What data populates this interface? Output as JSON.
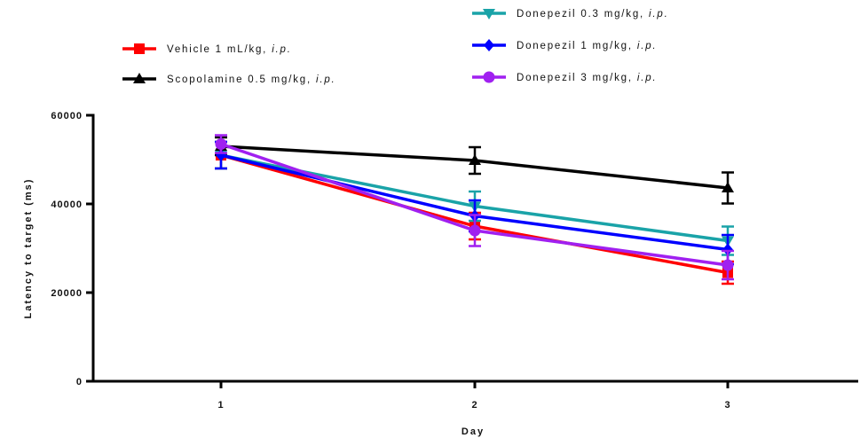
{
  "chart_data": {
    "type": "line",
    "title": "",
    "xlabel": "Day",
    "ylabel": "Latency to target (ms)",
    "x": [
      1,
      2,
      3
    ],
    "xticks": [
      "1",
      "2",
      "3"
    ],
    "yticks": [
      "0",
      "20000",
      "40000",
      "60000"
    ],
    "ylim": [
      0,
      60000
    ],
    "grid": false,
    "legend_placement": "top",
    "series": [
      {
        "name": "Vehicle 1 mL/kg, i.p.",
        "legend_text": "Vehicle 1 mL/kg, ",
        "legend_italic": "i.p.",
        "marker": "square",
        "color": "#ff0000",
        "values": [
          51000,
          35000,
          24500
        ],
        "errors": [
          3000,
          3000,
          2500
        ]
      },
      {
        "name": "Scopolamine 0.5 mg/kg, i.p.",
        "legend_text": "Scopolamine 0.5 mg/kg, ",
        "legend_italic": "i.p.",
        "marker": "triangle-up",
        "color": "#000000",
        "values": [
          53000,
          49800,
          43600
        ],
        "errors": [
          2000,
          3000,
          3500
        ]
      },
      {
        "name": "Donepezil 0.3 mg/kg, i.p.",
        "legend_text": "Donepezil 0.3 mg/kg, ",
        "legend_italic": "i.p.",
        "marker": "triangle-down",
        "color": "#1aa3a8",
        "values": [
          51000,
          39500,
          31700
        ],
        "errors": [
          3000,
          3300,
          3200
        ]
      },
      {
        "name": "Donepezil 1 mg/kg, i.p.",
        "legend_text": "Donepezil 1  mg/kg, ",
        "legend_italic": "i.p.",
        "marker": "diamond",
        "color": "#0000ff",
        "values": [
          51000,
          37300,
          29700
        ],
        "errors": [
          3000,
          3500,
          3300
        ]
      },
      {
        "name": "Donepezil 3 mg/kg, i.p.",
        "legend_text": "Donepezil 3  mg/kg, ",
        "legend_italic": "i.p.",
        "marker": "circle",
        "color": "#a020f0",
        "values": [
          53500,
          34000,
          26200
        ],
        "errors": [
          2000,
          3500,
          3200
        ]
      }
    ]
  }
}
